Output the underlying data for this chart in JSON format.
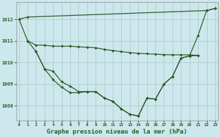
{
  "xlabel": "Graphe pression niveau de la mer (hPa)",
  "x": [
    0,
    1,
    2,
    3,
    4,
    5,
    6,
    7,
    8,
    9,
    10,
    11,
    12,
    13,
    14,
    15,
    16,
    17,
    18,
    19,
    20,
    21,
    22,
    23
  ],
  "line_straight": [
    1012.0,
    1012.1,
    null,
    null,
    null,
    null,
    null,
    null,
    null,
    null,
    null,
    null,
    null,
    null,
    null,
    null,
    null,
    null,
    null,
    null,
    null,
    null,
    1012.4,
    1012.5
  ],
  "line_flat": [
    null,
    1011.0,
    1010.8,
    1010.8,
    1010.8,
    1010.8,
    1010.8,
    1010.75,
    1010.75,
    1010.75,
    1010.6,
    1010.55,
    1010.5,
    1010.4,
    1010.4,
    1010.35,
    1010.3,
    1010.3,
    1010.3,
    1010.3,
    1010.35,
    1010.3,
    null,
    null
  ],
  "line_main": [
    1012.0,
    1011.0,
    1010.5,
    1009.7,
    1009.6,
    1009.1,
    1008.9,
    1008.65,
    1008.65,
    1008.65,
    1008.35,
    1008.2,
    1007.85,
    1007.6,
    1007.52,
    1008.35,
    1008.3,
    1009.0,
    1009.35,
    1010.2,
    1010.3,
    1011.25,
    1012.4,
    1012.5
  ],
  "line_second": [
    null,
    null,
    1010.5,
    1009.7,
    1009.2,
    1008.85,
    1008.6,
    1008.6,
    1008.65,
    1008.65,
    1008.35,
    1008.2,
    1007.85,
    1007.6,
    1007.52,
    1008.35,
    1008.3,
    1009.0,
    1009.35,
    1010.2,
    1010.3,
    1010.3,
    null,
    null
  ],
  "bg_color": "#cde8ed",
  "line_color": "#2d5a27",
  "grid_color": "#b0c8cc",
  "ylim": [
    1007.3,
    1012.8
  ],
  "yticks": [
    1008,
    1009,
    1010,
    1011,
    1012
  ],
  "xticks": [
    0,
    1,
    2,
    3,
    4,
    5,
    6,
    7,
    8,
    9,
    10,
    11,
    12,
    13,
    14,
    15,
    16,
    17,
    18,
    19,
    20,
    21,
    22,
    23
  ]
}
